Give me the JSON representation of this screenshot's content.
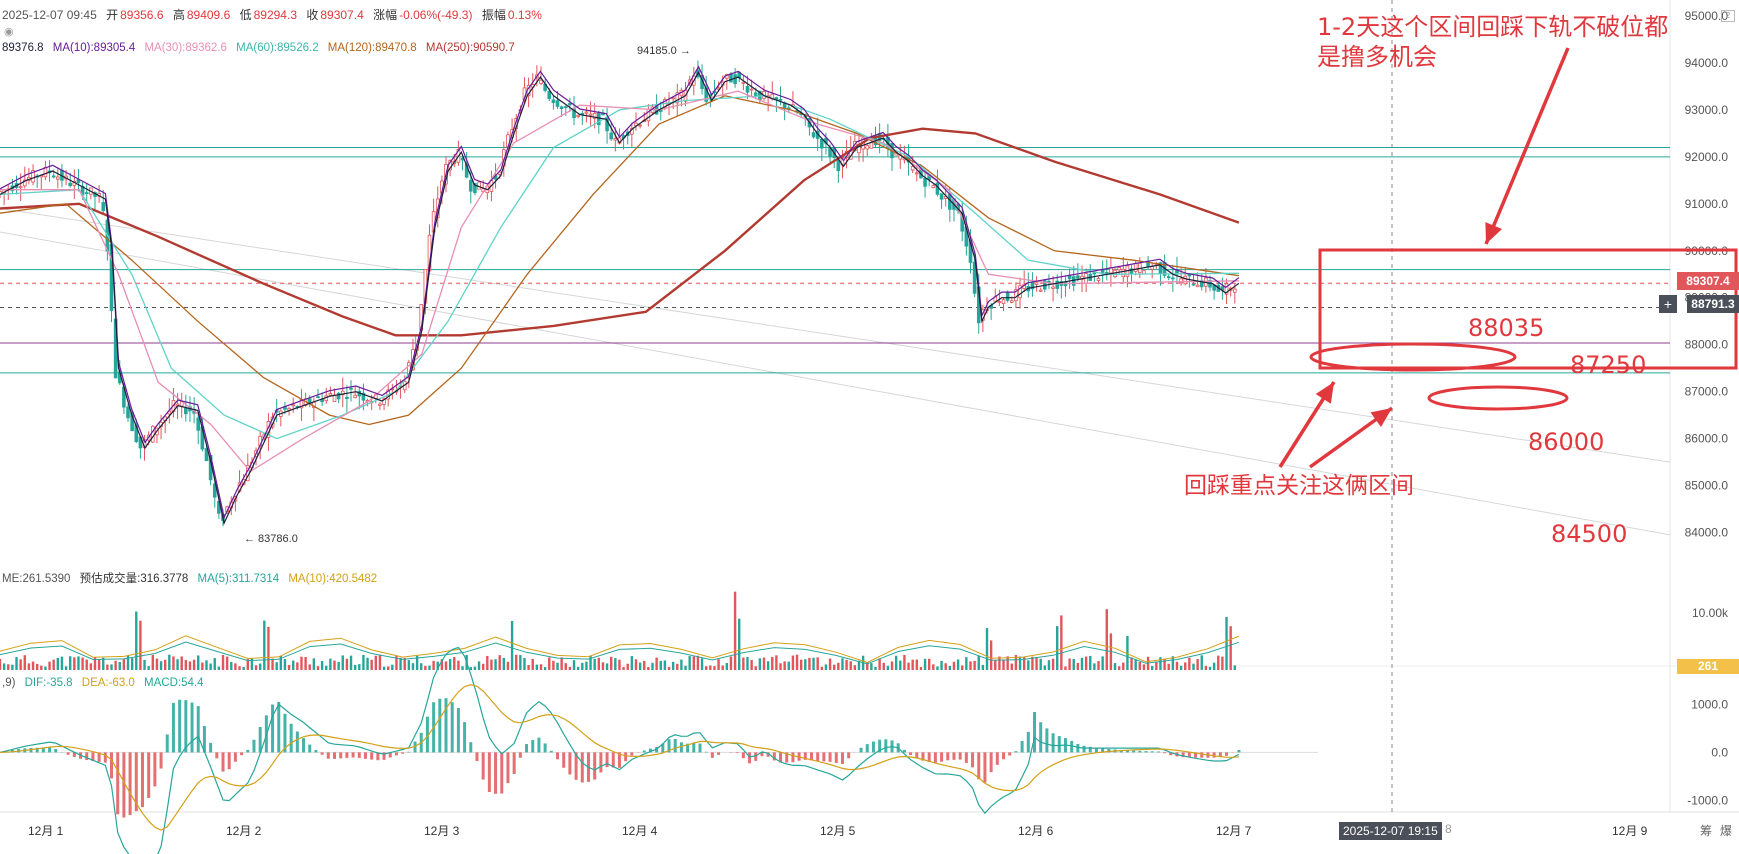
{
  "header": {
    "datetime": "2025-12-07 09:45",
    "open_label": "开",
    "open": "89356.6",
    "high_label": "高",
    "high": "89409.6",
    "low_label": "低",
    "low": "89294.3",
    "close_label": "收",
    "close": "89307.4",
    "change_label": "涨幅",
    "change": "-0.06%(-49.3)",
    "amp_label": "振幅",
    "amp": "0.13%"
  },
  "ma_legend": {
    "ma5": "89376.8",
    "ma10": "MA(10):89305.4",
    "ma30": "MA(30):89362.6",
    "ma60": "MA(60):89526.2",
    "ma120": "MA(120):89470.8",
    "ma250": "MA(250):90590.7"
  },
  "volume_legend": {
    "vol": "ME:261.5390",
    "est": "预估成交量:316.3778",
    "ma5": "MA(5):311.7314",
    "ma10": "MA(10):420.5482"
  },
  "macd_legend": {
    "prefix": ",9)",
    "dif": "DIF:-35.8",
    "dea": "DEA:-63.0",
    "macd": "MACD:54.4"
  },
  "price_tags": {
    "current": "89307.4",
    "cross": "88791.3",
    "volume_current": "261"
  },
  "extremes": {
    "high": "94185.0 →",
    "low": "← 83786.0"
  },
  "crosshair_time": "2025-12-07 19:15",
  "annotations": {
    "title_line1": "1-2天这个区间回踩下轨不破位都",
    "title_line2": "是撸多机会",
    "focus": "回踩重点关注这俩区间",
    "level_88035": "88035",
    "level_87250": "87250",
    "level_86000": "86000",
    "level_84500": "84500"
  },
  "x_axis": [
    "12月 1",
    "12月 2",
    "12月 3",
    "12月 4",
    "12月 5",
    "12月 6",
    "12月 7",
    "12月 9"
  ],
  "x_axis_partial": "8",
  "footer_right": [
    "筹",
    "爆"
  ],
  "colors": {
    "up": "#e0565b",
    "down": "#26a69a",
    "accent": "#e0383d",
    "ma5": "#1f1f3a",
    "ma10": "#6a1b9a",
    "ma30": "#e78fb3",
    "ma60": "#5fd3c8",
    "ma120": "#b5651d",
    "ma250": "#b23a30"
  },
  "chart_data": {
    "type": "candlestick",
    "ylim": [
      83500,
      95000
    ],
    "y_ticks": [
      95000,
      94000,
      93000,
      92000,
      91000,
      90000,
      89000,
      88000,
      87000,
      86000,
      85000,
      84000
    ],
    "vol_ticks": [
      "10.00k"
    ],
    "macd_ticks": [
      "1000.0",
      "0.0",
      "-1000.0"
    ],
    "horizontal_levels": [
      {
        "value": 92200,
        "color": "#26a69a"
      },
      {
        "value": 92000,
        "color": "#26a69a"
      },
      {
        "value": 89600,
        "color": "#26a69a"
      },
      {
        "value": 89307.4,
        "color": "#e0565b",
        "style": "dashed"
      },
      {
        "value": 88791.3,
        "color": "#555555",
        "style": "dashed"
      },
      {
        "value": 88035,
        "color": "#8e3c8e"
      },
      {
        "value": 87400,
        "color": "#26a69a"
      }
    ],
    "price_path": [
      {
        "t": 0.0,
        "p": 91200
      },
      {
        "t": 0.02,
        "p": 91500
      },
      {
        "t": 0.04,
        "p": 91700
      },
      {
        "t": 0.06,
        "p": 91400
      },
      {
        "t": 0.08,
        "p": 91100
      },
      {
        "t": 0.085,
        "p": 90000
      },
      {
        "t": 0.09,
        "p": 87500
      },
      {
        "t": 0.1,
        "p": 86500
      },
      {
        "t": 0.11,
        "p": 85800
      },
      {
        "t": 0.12,
        "p": 86200
      },
      {
        "t": 0.135,
        "p": 86700
      },
      {
        "t": 0.15,
        "p": 86600
      },
      {
        "t": 0.16,
        "p": 85500
      },
      {
        "t": 0.17,
        "p": 84200
      },
      {
        "t": 0.18,
        "p": 84800
      },
      {
        "t": 0.19,
        "p": 85300
      },
      {
        "t": 0.2,
        "p": 85900
      },
      {
        "t": 0.21,
        "p": 86500
      },
      {
        "t": 0.23,
        "p": 86700
      },
      {
        "t": 0.25,
        "p": 86900
      },
      {
        "t": 0.27,
        "p": 87000
      },
      {
        "t": 0.29,
        "p": 86800
      },
      {
        "t": 0.31,
        "p": 87200
      },
      {
        "t": 0.32,
        "p": 88300
      },
      {
        "t": 0.33,
        "p": 90500
      },
      {
        "t": 0.34,
        "p": 91700
      },
      {
        "t": 0.35,
        "p": 92100
      },
      {
        "t": 0.36,
        "p": 91400
      },
      {
        "t": 0.37,
        "p": 91300
      },
      {
        "t": 0.38,
        "p": 91600
      },
      {
        "t": 0.39,
        "p": 92500
      },
      {
        "t": 0.4,
        "p": 93300
      },
      {
        "t": 0.41,
        "p": 93700
      },
      {
        "t": 0.42,
        "p": 93300
      },
      {
        "t": 0.44,
        "p": 92900
      },
      {
        "t": 0.46,
        "p": 92800
      },
      {
        "t": 0.47,
        "p": 92300
      },
      {
        "t": 0.48,
        "p": 92600
      },
      {
        "t": 0.5,
        "p": 93000
      },
      {
        "t": 0.52,
        "p": 93300
      },
      {
        "t": 0.53,
        "p": 93800
      },
      {
        "t": 0.54,
        "p": 93200
      },
      {
        "t": 0.55,
        "p": 93600
      },
      {
        "t": 0.56,
        "p": 93700
      },
      {
        "t": 0.58,
        "p": 93300
      },
      {
        "t": 0.6,
        "p": 93100
      },
      {
        "t": 0.61,
        "p": 92900
      },
      {
        "t": 0.62,
        "p": 92500
      },
      {
        "t": 0.63,
        "p": 92200
      },
      {
        "t": 0.64,
        "p": 91800
      },
      {
        "t": 0.65,
        "p": 92200
      },
      {
        "t": 0.66,
        "p": 92300
      },
      {
        "t": 0.67,
        "p": 92400
      },
      {
        "t": 0.68,
        "p": 92100
      },
      {
        "t": 0.69,
        "p": 91900
      },
      {
        "t": 0.7,
        "p": 91600
      },
      {
        "t": 0.71,
        "p": 91400
      },
      {
        "t": 0.72,
        "p": 91100
      },
      {
        "t": 0.73,
        "p": 90800
      },
      {
        "t": 0.74,
        "p": 89800
      },
      {
        "t": 0.745,
        "p": 88500
      },
      {
        "t": 0.75,
        "p": 88800
      },
      {
        "t": 0.76,
        "p": 89000
      },
      {
        "t": 0.77,
        "p": 89000
      },
      {
        "t": 0.78,
        "p": 89200
      },
      {
        "t": 0.8,
        "p": 89300
      },
      {
        "t": 0.82,
        "p": 89400
      },
      {
        "t": 0.84,
        "p": 89500
      },
      {
        "t": 0.86,
        "p": 89600
      },
      {
        "t": 0.88,
        "p": 89700
      },
      {
        "t": 0.89,
        "p": 89500
      },
      {
        "t": 0.9,
        "p": 89400
      },
      {
        "t": 0.92,
        "p": 89300
      },
      {
        "t": 0.93,
        "p": 89100
      },
      {
        "t": 0.94,
        "p": 89307
      }
    ],
    "ma250_path": [
      {
        "t": 0.0,
        "p": 90900
      },
      {
        "t": 0.06,
        "p": 91000
      },
      {
        "t": 0.12,
        "p": 90300
      },
      {
        "t": 0.2,
        "p": 89300
      },
      {
        "t": 0.26,
        "p": 88600
      },
      {
        "t": 0.3,
        "p": 88200
      },
      {
        "t": 0.35,
        "p": 88200
      },
      {
        "t": 0.42,
        "p": 88400
      },
      {
        "t": 0.49,
        "p": 88700
      },
      {
        "t": 0.55,
        "p": 90000
      },
      {
        "t": 0.61,
        "p": 91500
      },
      {
        "t": 0.66,
        "p": 92400
      },
      {
        "t": 0.7,
        "p": 92600
      },
      {
        "t": 0.74,
        "p": 92500
      },
      {
        "t": 0.8,
        "p": 91900
      },
      {
        "t": 0.88,
        "p": 91200
      },
      {
        "t": 0.94,
        "p": 90600
      }
    ],
    "ma120_path": [
      {
        "t": 0.0,
        "p": 90800
      },
      {
        "t": 0.05,
        "p": 91000
      },
      {
        "t": 0.1,
        "p": 89800
      },
      {
        "t": 0.15,
        "p": 88500
      },
      {
        "t": 0.2,
        "p": 87300
      },
      {
        "t": 0.25,
        "p": 86500
      },
      {
        "t": 0.28,
        "p": 86300
      },
      {
        "t": 0.31,
        "p": 86500
      },
      {
        "t": 0.35,
        "p": 87500
      },
      {
        "t": 0.4,
        "p": 89500
      },
      {
        "t": 0.45,
        "p": 91200
      },
      {
        "t": 0.5,
        "p": 92700
      },
      {
        "t": 0.55,
        "p": 93300
      },
      {
        "t": 0.6,
        "p": 93000
      },
      {
        "t": 0.65,
        "p": 92500
      },
      {
        "t": 0.7,
        "p": 91800
      },
      {
        "t": 0.75,
        "p": 90700
      },
      {
        "t": 0.8,
        "p": 90000
      },
      {
        "t": 0.86,
        "p": 89800
      },
      {
        "t": 0.94,
        "p": 89470
      }
    ],
    "ma60_path": [
      {
        "t": 0.0,
        "p": 91200
      },
      {
        "t": 0.06,
        "p": 91300
      },
      {
        "t": 0.1,
        "p": 89500
      },
      {
        "t": 0.13,
        "p": 87500
      },
      {
        "t": 0.17,
        "p": 86500
      },
      {
        "t": 0.21,
        "p": 86000
      },
      {
        "t": 0.26,
        "p": 86500
      },
      {
        "t": 0.3,
        "p": 87000
      },
      {
        "t": 0.34,
        "p": 88500
      },
      {
        "t": 0.38,
        "p": 90500
      },
      {
        "t": 0.42,
        "p": 92200
      },
      {
        "t": 0.47,
        "p": 93000
      },
      {
        "t": 0.52,
        "p": 93200
      },
      {
        "t": 0.58,
        "p": 93300
      },
      {
        "t": 0.63,
        "p": 92800
      },
      {
        "t": 0.69,
        "p": 92000
      },
      {
        "t": 0.74,
        "p": 90800
      },
      {
        "t": 0.78,
        "p": 89800
      },
      {
        "t": 0.84,
        "p": 89500
      },
      {
        "t": 0.94,
        "p": 89520
      }
    ],
    "ma30_path": [
      {
        "t": 0.0,
        "p": 91300
      },
      {
        "t": 0.06,
        "p": 91300
      },
      {
        "t": 0.09,
        "p": 89500
      },
      {
        "t": 0.12,
        "p": 87200
      },
      {
        "t": 0.16,
        "p": 86300
      },
      {
        "t": 0.19,
        "p": 85300
      },
      {
        "t": 0.23,
        "p": 86000
      },
      {
        "t": 0.28,
        "p": 86800
      },
      {
        "t": 0.32,
        "p": 87800
      },
      {
        "t": 0.35,
        "p": 90500
      },
      {
        "t": 0.39,
        "p": 92300
      },
      {
        "t": 0.44,
        "p": 93100
      },
      {
        "t": 0.5,
        "p": 93000
      },
      {
        "t": 0.56,
        "p": 93400
      },
      {
        "t": 0.62,
        "p": 92700
      },
      {
        "t": 0.67,
        "p": 92300
      },
      {
        "t": 0.72,
        "p": 91300
      },
      {
        "t": 0.75,
        "p": 89500
      },
      {
        "t": 0.8,
        "p": 89300
      },
      {
        "t": 0.94,
        "p": 89360
      }
    ],
    "volume": {
      "ylim": [
        0,
        14000
      ],
      "current": 261
    },
    "macd": {
      "ylim": [
        -1200,
        1300
      ]
    }
  }
}
